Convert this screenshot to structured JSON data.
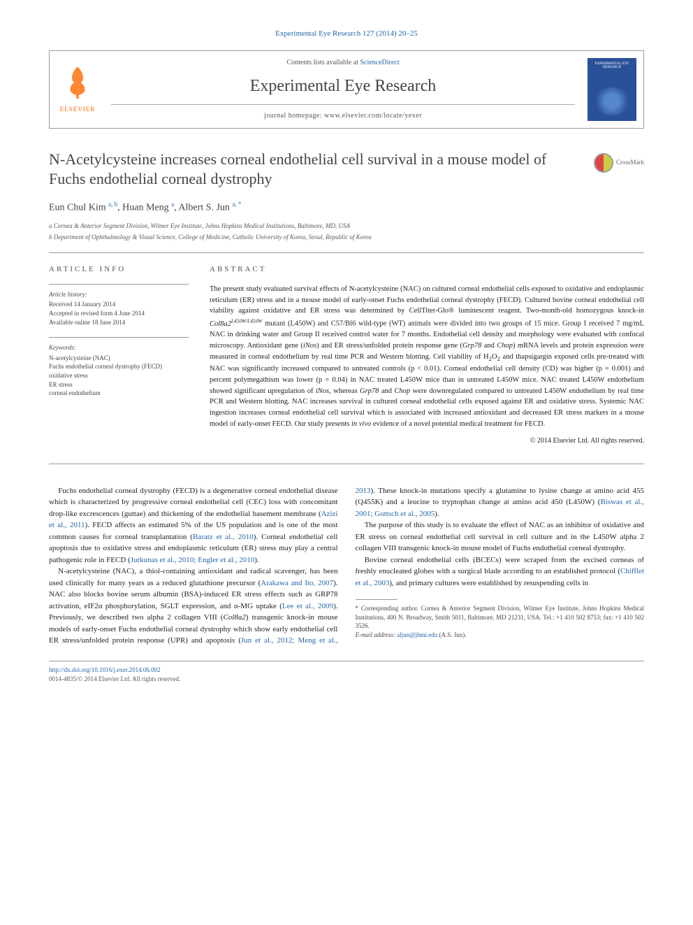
{
  "citation": "Experimental Eye Research 127 (2014) 20–25",
  "topbox": {
    "elsevier_label": "ELSEVIER",
    "contents_prefix": "Contents lists available at ",
    "contents_link": "ScienceDirect",
    "journal_name": "Experimental Eye Research",
    "homepage_prefix": "journal homepage: ",
    "homepage_url": "www.elsevier.com/locate/yexer",
    "cover_title": "EXPERIMENTAL EYE RESEARCH"
  },
  "crossmark_label": "CrossMark",
  "title": "N-Acetylcysteine increases corneal endothelial cell survival in a mouse model of Fuchs endothelial corneal dystrophy",
  "authors": {
    "a1_name": "Eun Chul Kim ",
    "a1_sup": "a, b",
    "a2_name": ", Huan Meng ",
    "a2_sup": "a",
    "a3_name": ", Albert S. Jun ",
    "a3_sup": "a, ",
    "star": "*"
  },
  "affiliations": {
    "a": "a Cornea & Anterior Segment Division, Wilmer Eye Institute, Johns Hopkins Medical Institutions, Baltimore, MD, USA",
    "b": "b Department of Ophthalmology & Visual Science, College of Medicine, Catholic University of Korea, Seoul, Republic of Korea"
  },
  "article_info_label": "ARTICLE INFO",
  "abstract_label": "ABSTRACT",
  "history": {
    "title": "Article history:",
    "l1": "Received 14 January 2014",
    "l2": "Accepted in revised form 4 June 2014",
    "l3": "Available online 18 June 2014"
  },
  "keywords": {
    "title": "Keywords:",
    "k1": "N-acetylcysteine (NAC)",
    "k2": "Fuchs endothelial corneal dystrophy (FECD)",
    "k3": "oxidative stress",
    "k4": "ER stress",
    "k5": "corneal endothelium"
  },
  "abstract_html": "The present study evaluated survival effects of N-acetylcysteine (NAC) on cultured corneal endothelial cells exposed to oxidative and endoplasmic reticulum (ER) stress and in a mouse model of early-onset Fuchs endothelial corneal dystrophy (FECD). Cultured bovine corneal endothelial cell viability against oxidative and ER stress was determined by CellTiter-Glo® luminescent reagent. Two-month-old homozygous knock-in <em>Col8a2<sup>L450W/L450W</sup></em> mutant (L450W) and C57/Bl6 wild-type (WT) animals were divided into two groups of 15 mice. Group I received 7 mg/mL NAC in drinking water and Group II received control water for 7 months. Endothelial cell density and morphology were evaluated with confocal microscopy. Antioxidant gene (<em>iNos</em>) and ER stress/unfolded protein response gene (<em>Grp78</em> and <em>Chop</em>) mRNA levels and protein expression were measured in corneal endothelium by real time PCR and Western blotting. Cell viability of H<sub>2</sub>O<sub>2</sub> and thapsigargin exposed cells pre-treated with NAC was significantly increased compared to untreated controls (p < 0.01). Corneal endothelial cell density (CD) was higher (p = 0.001) and percent polymegathism was lower (p = 0.04) in NAC treated L450W mice than in untreated L450W mice. NAC treated L450W endothelium showed significant upregulation of <em>iNos</em>, whereas <em>Grp78</em> and <em>Chop</em> were downregulated compared to untreated L450W endothelium by real time PCR and Western blotting. NAC increases survival in cultured corneal endothelial cells exposed against ER and oxidative stress. Systemic NAC ingestion increases corneal endothelial cell survival which is associated with increased antioxidant and decreased ER stress markers in a mouse model of early-onset FECD. Our study presents <em>in vivo</em> evidence of a novel potential medical treatment for FECD.",
  "copyright": "© 2014 Elsevier Ltd. All rights reserved.",
  "body": {
    "p1_a": "Fuchs endothelial corneal dystrophy (FECD) is a degenerative corneal endothelial disease which is characterized by progressive corneal endothelial cell (CEC) loss with concomitant drop-like excrescences (guttae) and thickening of the endothelial basement membrane (",
    "p1_l1": "Azizi et al., 2011",
    "p1_b": "). FECD affects an estimated 5% of the US population and is one of the most common causes for corneal transplantation (",
    "p1_l2": "Baratz et al., 2010",
    "p1_c": "). Corneal endothelial cell apoptosis due to oxidative stress and endoplasmic reticulum (ER) stress may play a central pathogenic role in FECD (",
    "p1_l3": "Jurkunas et al., 2010; Engler et al., 2010",
    "p1_d": ").",
    "p2_a": "N-acetylcysteine (NAC), a thiol-containing antioxidant and radical scavenger, has been used clinically for many years as a reduced glutathione precursor (",
    "p2_l1": "Arakawa and Ito, 2007",
    "p2_b": "). NAC also blocks bovine serum albumin (BSA)-induced ER stress effects such as GRP78 activation, eIF2α phosphorylation, SGLT expression, and α-MG uptake (",
    "p2_l2": "Lee et al., 2009",
    "p2_c": "). Previously, we described two alpha 2 collagen VIII (",
    "p2_em1": "Col8a2",
    "p2_d": ") transgenic knock-in mouse models of early-onset Fuchs endothelial corneal dystrophy which show early endothelial cell ER stress/unfolded protein response (UPR) and apoptosis (",
    "p2_l3": "Jun et al., 2012; Meng et al., 2013",
    "p2_e": "). These knock-in mutations specify a glutamine to lysine change at amino acid 455 (Q455K) and a leucine to tryptophan change at amino acid 450 (L450W) (",
    "p2_l4": "Biswas et al., 2001; Gottsch et al., 2005",
    "p2_f": ").",
    "p3": "The purpose of this study is to evaluate the effect of NAC as an inhibitor of oxidative and ER stress on corneal endothelial cell survival in cell culture and in the L450W alpha 2 collagen VIII transgenic knock-in mouse model of Fuchs endothelial corneal dystrophy.",
    "p4_a": "Bovine corneal endothelial cells (BCECs) were scraped from the excised corneas of freshly enucleated globes with a surgical blade according to an established protocol (",
    "p4_l1": "Chifflet et al., 2003",
    "p4_b": "), and primary cultures were established by resuspending cells in"
  },
  "footnote": {
    "corr": "* Corresponding author. Cornea & Anterior Segment Division, Wilmer Eye Institute, Johns Hopkins Medical Institutions, 400 N. Broadway, Smith 5011, Baltimore, MD 21231, USA. Tel.: +1 410 502 8753; fax: +1 410 502 3526.",
    "email_label": "E-mail address: ",
    "email": "aljun@jhmi.edu",
    "email_suffix": " (A.S. Jun)."
  },
  "doi": "http://dx.doi.org/10.1016/j.exer.2014.06.002",
  "issn": "0014-4835/© 2014 Elsevier Ltd. All rights reserved."
}
